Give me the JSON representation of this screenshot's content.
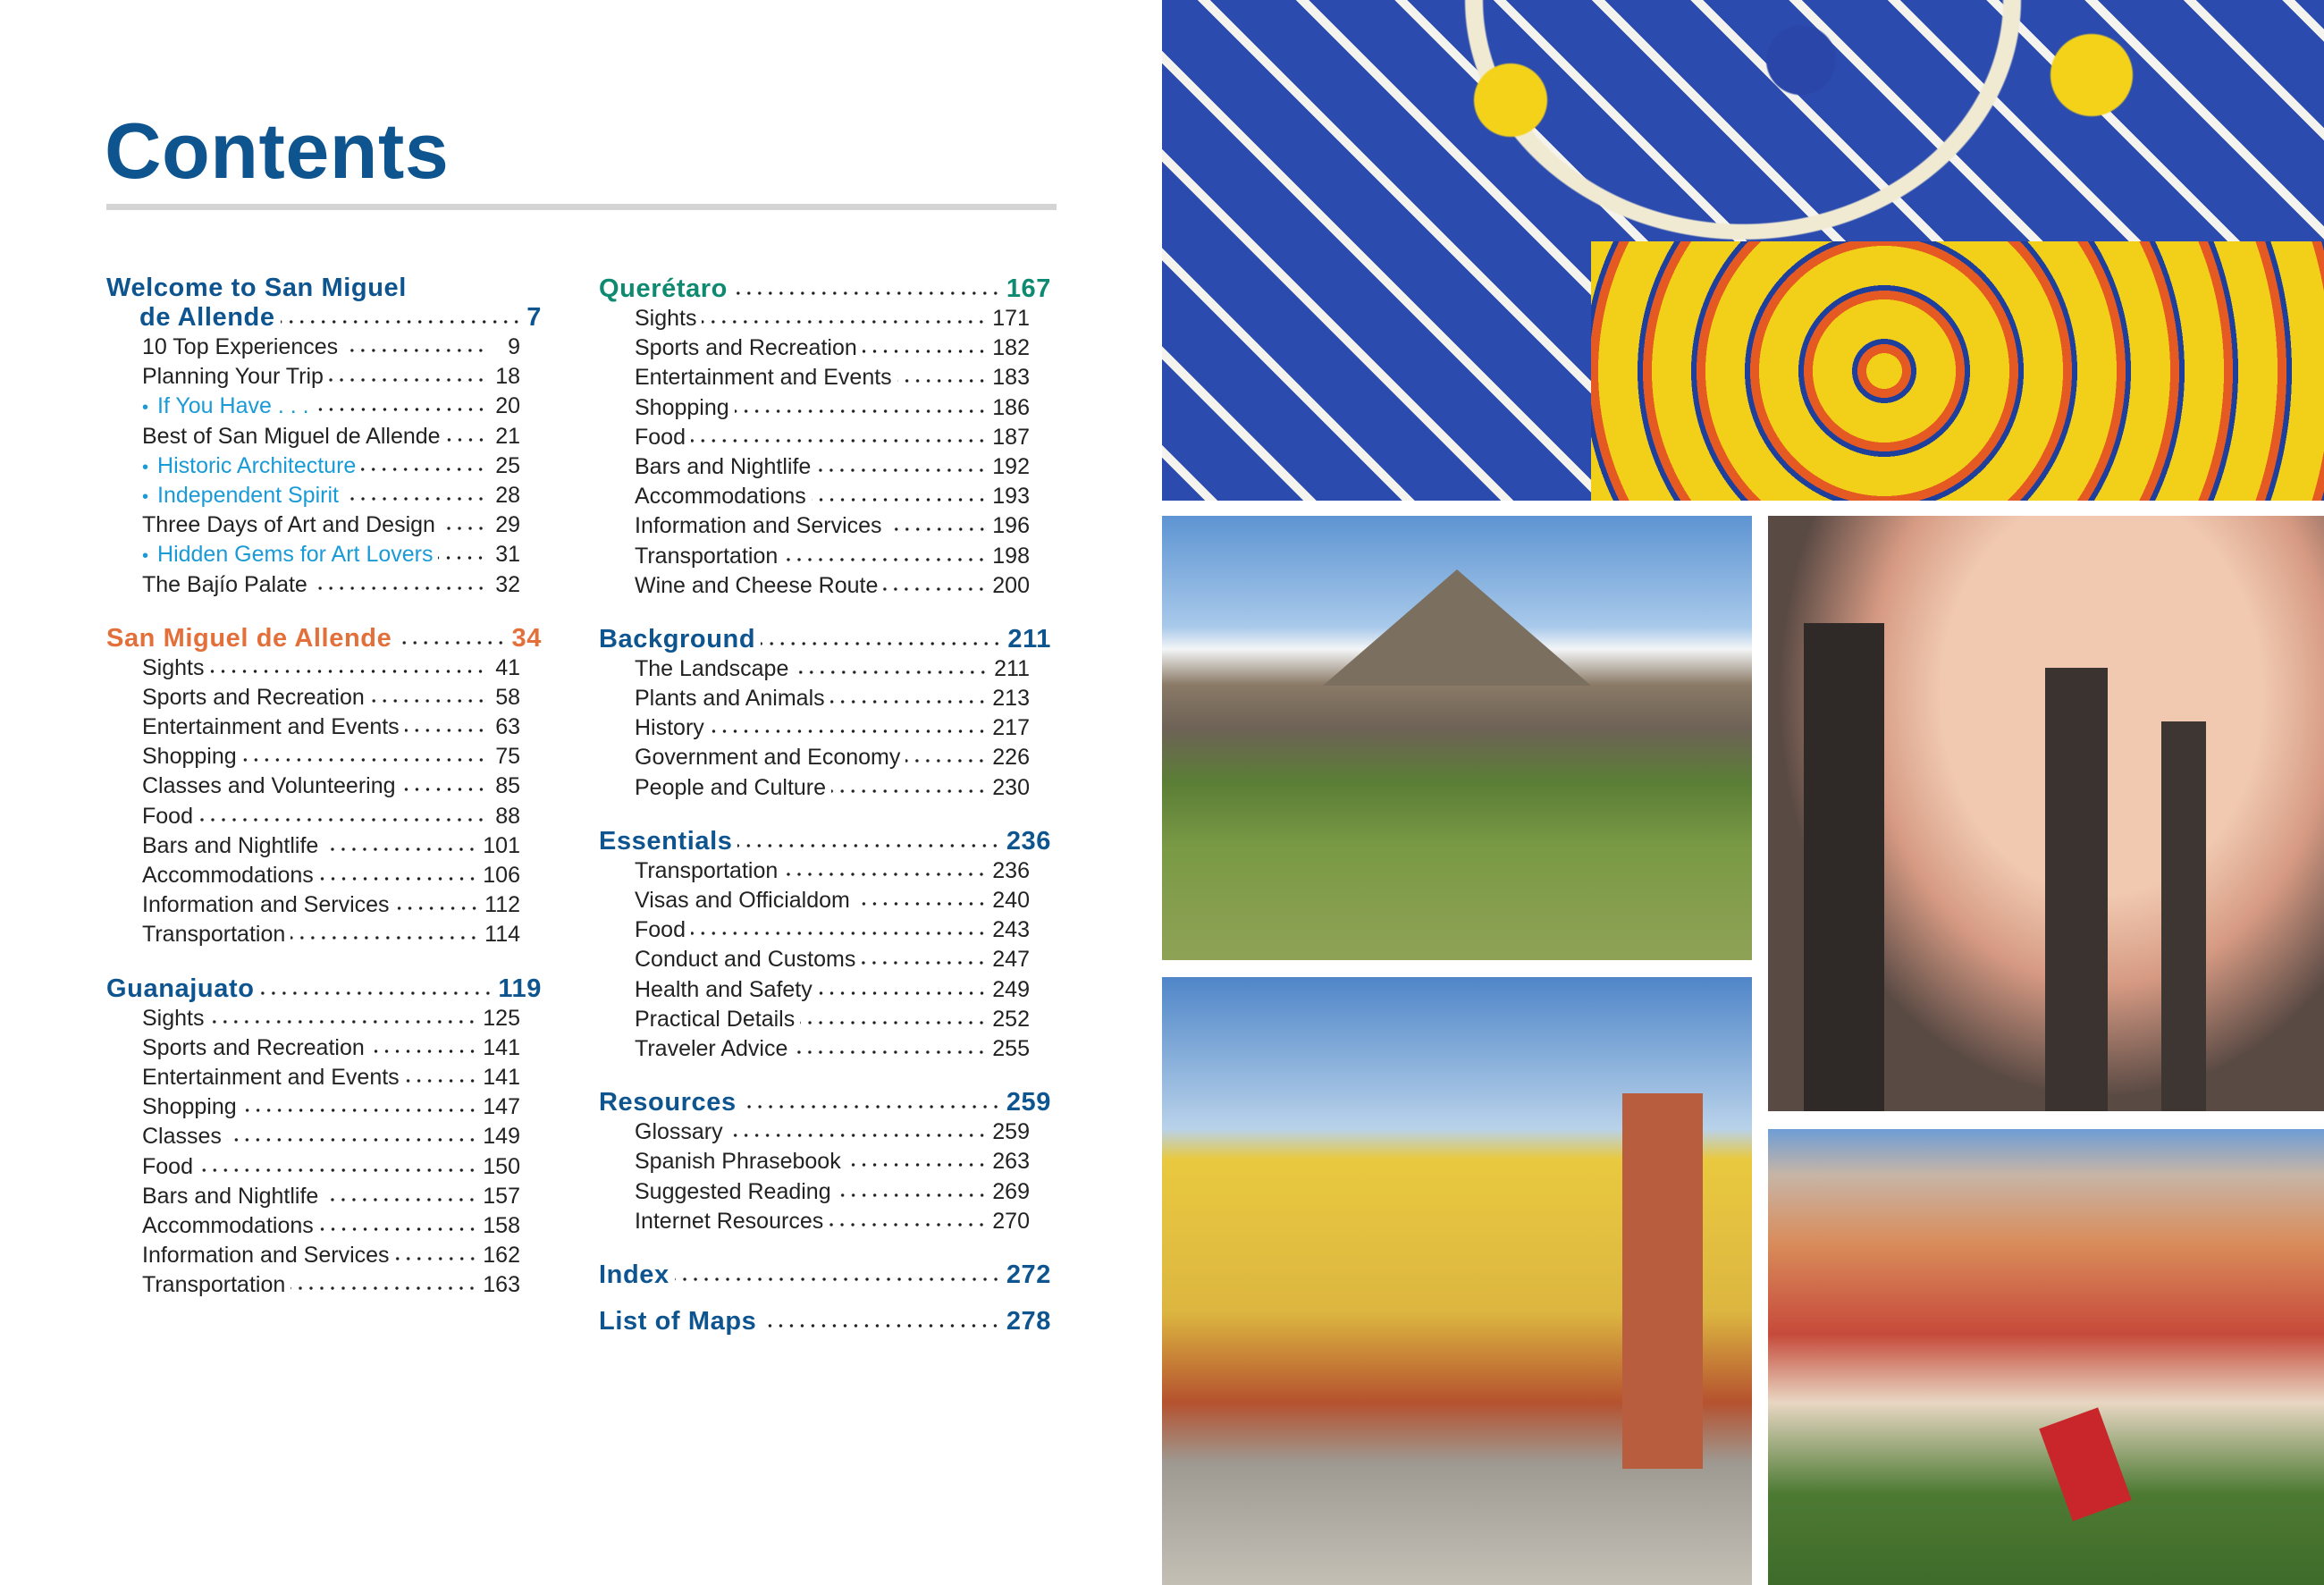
{
  "title": "Contents",
  "colors": {
    "primary": "#0e5590",
    "orange": "#e3703b",
    "teal": "#0e8a70",
    "highlight": "#1a9ad6"
  },
  "left_column": [
    {
      "title_line1": "Welcome to San Miguel",
      "title": "de Allende",
      "page": "7",
      "color": "blue",
      "two_line": true,
      "items": [
        {
          "label": "10 Top Experiences",
          "page": "9"
        },
        {
          "label": "Planning Your Trip",
          "page": "18"
        },
        {
          "label": "If You Have . . .",
          "page": "20",
          "highlight": true
        },
        {
          "label": "Best of San Miguel de Allende",
          "page": "21"
        },
        {
          "label": "Historic Architecture",
          "page": "25",
          "highlight": true
        },
        {
          "label": "Independent Spirit",
          "page": "28",
          "highlight": true
        },
        {
          "label": "Three Days of Art and Design",
          "page": "29"
        },
        {
          "label": "Hidden Gems for Art Lovers",
          "page": "31",
          "highlight": true
        },
        {
          "label": "The Bajío Palate",
          "page": "32"
        }
      ]
    },
    {
      "title": "San Miguel de Allende",
      "page": "34",
      "color": "orange",
      "items": [
        {
          "label": "Sights",
          "page": "41"
        },
        {
          "label": "Sports and Recreation",
          "page": "58"
        },
        {
          "label": "Entertainment and Events",
          "page": "63"
        },
        {
          "label": "Shopping",
          "page": "75"
        },
        {
          "label": "Classes and Volunteering",
          "page": "85"
        },
        {
          "label": "Food",
          "page": "88"
        },
        {
          "label": "Bars and Nightlife",
          "page": "101"
        },
        {
          "label": "Accommodations",
          "page": "106"
        },
        {
          "label": "Information and Services",
          "page": "112"
        },
        {
          "label": "Transportation",
          "page": "114"
        }
      ]
    },
    {
      "title": "Guanajuato",
      "page": "119",
      "color": "blue",
      "items": [
        {
          "label": "Sights",
          "page": "125"
        },
        {
          "label": "Sports and Recreation",
          "page": "141"
        },
        {
          "label": "Entertainment and Events",
          "page": "141"
        },
        {
          "label": "Shopping",
          "page": "147"
        },
        {
          "label": "Classes",
          "page": "149"
        },
        {
          "label": "Food",
          "page": "150"
        },
        {
          "label": "Bars and Nightlife",
          "page": "157"
        },
        {
          "label": "Accommodations",
          "page": "158"
        },
        {
          "label": "Information and Services",
          "page": "162"
        },
        {
          "label": "Transportation",
          "page": "163"
        }
      ]
    }
  ],
  "middle_column": [
    {
      "title": "Querétaro",
      "page": "167",
      "color": "teal",
      "items": [
        {
          "label": "Sights",
          "page": "171"
        },
        {
          "label": "Sports and Recreation",
          "page": "182"
        },
        {
          "label": "Entertainment and Events",
          "page": "183"
        },
        {
          "label": "Shopping",
          "page": "186"
        },
        {
          "label": "Food",
          "page": "187"
        },
        {
          "label": "Bars and Nightlife",
          "page": "192"
        },
        {
          "label": "Accommodations",
          "page": "193"
        },
        {
          "label": "Information and Services",
          "page": "196"
        },
        {
          "label": "Transportation",
          "page": "198"
        },
        {
          "label": "Wine and Cheese Route",
          "page": "200"
        }
      ]
    },
    {
      "title": "Background",
      "page": "211",
      "color": "blue",
      "items": [
        {
          "label": "The Landscape",
          "page": "211"
        },
        {
          "label": "Plants and Animals",
          "page": "213"
        },
        {
          "label": "History",
          "page": "217"
        },
        {
          "label": "Government and Economy",
          "page": "226"
        },
        {
          "label": "People and Culture",
          "page": "230"
        }
      ]
    },
    {
      "title": "Essentials",
      "page": "236",
      "color": "blue",
      "items": [
        {
          "label": "Transportation",
          "page": "236"
        },
        {
          "label": "Visas and Officialdom",
          "page": "240"
        },
        {
          "label": "Food",
          "page": "243"
        },
        {
          "label": "Conduct and Customs",
          "page": "247"
        },
        {
          "label": "Health and Safety",
          "page": "249"
        },
        {
          "label": "Practical Details",
          "page": "252"
        },
        {
          "label": "Traveler Advice",
          "page": "255"
        }
      ]
    },
    {
      "title": "Resources",
      "page": "259",
      "color": "blue",
      "items": [
        {
          "label": "Glossary",
          "page": "259"
        },
        {
          "label": "Spanish Phrasebook",
          "page": "263"
        },
        {
          "label": "Suggested Reading",
          "page": "269"
        },
        {
          "label": "Internet Resources",
          "page": "270"
        }
      ]
    },
    {
      "title": "Index",
      "page": "272",
      "color": "blue",
      "items": []
    },
    {
      "title": "List of Maps",
      "page": "278",
      "color": "blue",
      "tight": true,
      "items": []
    }
  ],
  "bullet": "•",
  "photos": [
    "talavera-tiles-photo",
    "pyramid-ruins-photo",
    "arcade-with-papel-picado-photo",
    "colonial-street-photo",
    "guanajuato-funicular-photo"
  ]
}
